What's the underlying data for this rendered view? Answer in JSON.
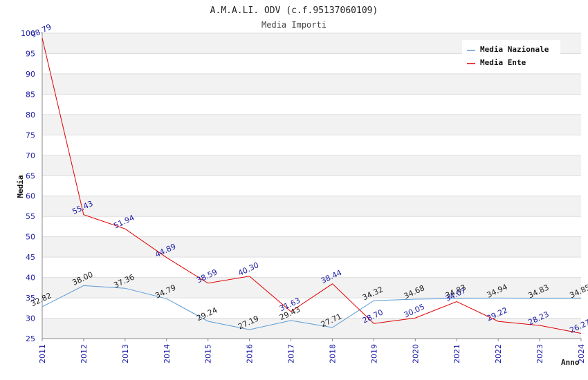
{
  "chart_data": {
    "type": "line",
    "title": "A.M.A.LI. ODV (c.f.95137060109)",
    "subtitle": "Media Importi",
    "xlabel": "Anno",
    "ylabel": "Media",
    "ylim": [
      25,
      100
    ],
    "ytick_step": 5,
    "grid": true,
    "legend_position": "top-right",
    "x": [
      "2011",
      "2012",
      "2013",
      "2014",
      "2015",
      "2016",
      "2017",
      "2018",
      "2019",
      "2020",
      "2021",
      "2022",
      "2023",
      "2024"
    ],
    "series": [
      {
        "name": "Media Nazionale",
        "color": "#5b9bd5",
        "label_color": "#222222",
        "values": [
          32.82,
          38.0,
          37.36,
          34.79,
          29.24,
          27.19,
          29.43,
          27.71,
          34.32,
          34.68,
          34.83,
          34.94,
          34.83,
          34.85
        ],
        "labels": [
          "32.82",
          "38.00",
          "37.36",
          "34.79",
          "29.24",
          "27.19",
          "29.43",
          "27.71",
          "34.32",
          "34.68",
          "34.83",
          "34.94",
          "34.83",
          "34.85"
        ]
      },
      {
        "name": "Media Ente",
        "color": "#e00000",
        "label_color": "#1a1aa6",
        "values": [
          98.79,
          55.43,
          51.94,
          44.89,
          38.59,
          40.3,
          31.63,
          38.44,
          28.7,
          30.05,
          34.07,
          29.22,
          28.23,
          26.27
        ],
        "labels": [
          "98.79",
          "55.43",
          "51.94",
          "44.89",
          "38.59",
          "40.30",
          "31.63",
          "38.44",
          "28.70",
          "30.05",
          "34.07",
          "29.22",
          "28.23",
          "26.27"
        ]
      }
    ]
  }
}
